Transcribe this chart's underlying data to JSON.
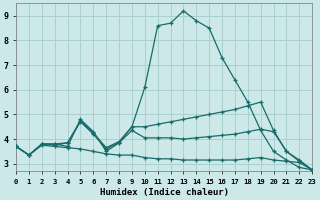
{
  "xlabel": "Humidex (Indice chaleur)",
  "xlim": [
    0,
    23
  ],
  "ylim": [
    2.7,
    9.5
  ],
  "yticks": [
    3,
    4,
    5,
    6,
    7,
    8,
    9
  ],
  "xticks": [
    0,
    1,
    2,
    3,
    4,
    5,
    6,
    7,
    8,
    9,
    10,
    11,
    12,
    13,
    14,
    15,
    16,
    17,
    18,
    19,
    20,
    21,
    22,
    23
  ],
  "bg_color": "#cce8e8",
  "grid_color": "#aad0d0",
  "line_color": "#1a6b6b",
  "line1_x": [
    0,
    1,
    2,
    3,
    4,
    5,
    6,
    7,
    8,
    9,
    10,
    11,
    12,
    13,
    14,
    15,
    16,
    17,
    18,
    19,
    20,
    21,
    22,
    23
  ],
  "line1_y": [
    3.7,
    3.35,
    3.8,
    3.8,
    3.7,
    4.8,
    4.3,
    3.5,
    3.85,
    4.5,
    6.1,
    8.6,
    8.7,
    9.2,
    8.8,
    8.5,
    7.3,
    6.4,
    5.5,
    4.35,
    3.5,
    3.15,
    2.85,
    2.75
  ],
  "line2_x": [
    0,
    1,
    2,
    3,
    4,
    5,
    6,
    7,
    8,
    9,
    10,
    11,
    12,
    13,
    14,
    15,
    16,
    17,
    18,
    19,
    20,
    21,
    22,
    23
  ],
  "line2_y": [
    3.7,
    3.35,
    3.8,
    3.8,
    3.85,
    4.75,
    4.25,
    3.65,
    3.9,
    4.5,
    4.5,
    4.6,
    4.7,
    4.8,
    4.9,
    5.0,
    5.1,
    5.2,
    5.35,
    5.5,
    4.35,
    3.5,
    3.15,
    2.75
  ],
  "line3_x": [
    0,
    1,
    2,
    3,
    4,
    5,
    6,
    7,
    8,
    9,
    10,
    11,
    12,
    13,
    14,
    15,
    16,
    17,
    18,
    19,
    20,
    21,
    22,
    23
  ],
  "line3_y": [
    3.7,
    3.35,
    3.8,
    3.75,
    3.85,
    4.7,
    4.2,
    3.6,
    3.85,
    4.35,
    4.05,
    4.05,
    4.05,
    4.0,
    4.05,
    4.1,
    4.15,
    4.2,
    4.3,
    4.4,
    4.3,
    3.5,
    3.1,
    2.75
  ],
  "line4_x": [
    0,
    1,
    2,
    3,
    4,
    5,
    6,
    7,
    8,
    9,
    10,
    11,
    12,
    13,
    14,
    15,
    16,
    17,
    18,
    19,
    20,
    21,
    22,
    23
  ],
  "line4_y": [
    3.7,
    3.35,
    3.75,
    3.7,
    3.65,
    3.6,
    3.5,
    3.4,
    3.35,
    3.35,
    3.25,
    3.2,
    3.2,
    3.15,
    3.15,
    3.15,
    3.15,
    3.15,
    3.2,
    3.25,
    3.15,
    3.1,
    3.05,
    2.75
  ]
}
